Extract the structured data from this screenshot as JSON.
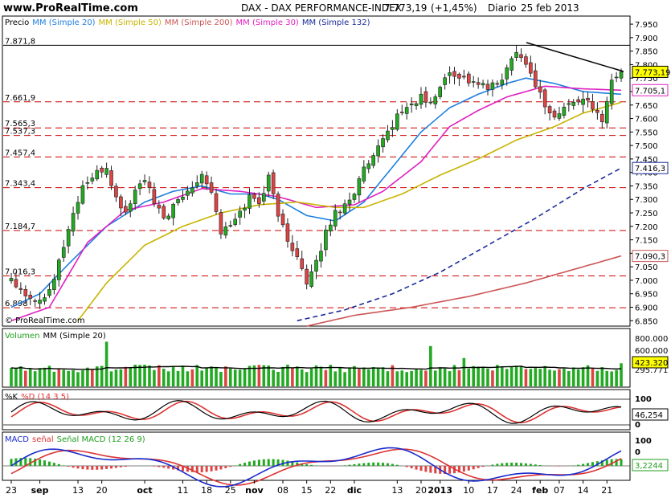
{
  "header": {
    "site": "www.ProRealTime.com",
    "title": "DAX - DAX PERFORMANCE-INDEX",
    "last_value": "7.773,19",
    "change": "(+1,45%)",
    "period": "Diario",
    "date": "25 feb 2013"
  },
  "watermark": "© ProRealTime.com",
  "price_panel": {
    "legend": [
      {
        "text": "Precio",
        "color": "#000000"
      },
      {
        "text": "MM (Simple 20)",
        "color": "#1e7fe0"
      },
      {
        "text": "MM (Simple 50)",
        "color": "#c8b400"
      },
      {
        "text": "MM (Simple 200)",
        "color": "#cc5555"
      },
      {
        "text": "MM (Simple 30)",
        "color": "#e020c0"
      },
      {
        "text": "MM (Simple 132)",
        "color": "#1a2a9a"
      }
    ],
    "y_ticks": [
      "7.950",
      "7.900",
      "7.850",
      "7.800",
      "7.750",
      "7.700",
      "7.650",
      "7.600",
      "7.550",
      "7.500",
      "7.450",
      "7.400",
      "7.350",
      "7.300",
      "7.250",
      "7.200",
      "7.150",
      "7.100",
      "7.050",
      "7.000",
      "6.950",
      "6.900",
      "6.850"
    ],
    "levels": [
      {
        "label": "7.871,8",
        "value": 7871.8,
        "style": "solid"
      },
      {
        "label": "7.661,9",
        "value": 7661.9,
        "style": "dashed"
      },
      {
        "label": "7.565,3",
        "value": 7565.3,
        "style": "dashed"
      },
      {
        "label": "7.537,3",
        "value": 7537.3,
        "style": "dashed"
      },
      {
        "label": "7.457,4",
        "value": 7457.4,
        "style": "dashed"
      },
      {
        "label": "7.343,4",
        "value": 7343.4,
        "style": "dashed"
      },
      {
        "label": "7.184,7",
        "value": 7184.7,
        "style": "dashed"
      },
      {
        "label": "7.016,3",
        "value": 7016.3,
        "style": "dashed"
      },
      {
        "label": "6.898",
        "value": 6898,
        "style": "dashed"
      }
    ],
    "value_tags": [
      {
        "label": "7.773,19",
        "value": 7773.19,
        "bg": "#ffff00",
        "border": "#000000"
      },
      {
        "label": "7.705,1",
        "value": 7705.1,
        "bg": "#ffffff",
        "border": "#e020c0"
      },
      {
        "label": "7.416,3",
        "value": 7416.3,
        "bg": "#ffffff",
        "border": "#1a2a9a"
      },
      {
        "label": "7.090,3",
        "value": 7090.3,
        "bg": "#ffffff",
        "border": "#cc5555"
      }
    ]
  },
  "volume_panel": {
    "legend": [
      {
        "text": "Volumen",
        "color": "#1e9e1e"
      },
      {
        "text": "MM (Simple 20)",
        "color": "#000000"
      }
    ],
    "y_ticks": [
      "800.000",
      "600.000",
      "295.771"
    ],
    "tag": {
      "label": "423.320",
      "bg": "#ffff00"
    }
  },
  "stoch_panel": {
    "legend": [
      {
        "text": "%K",
        "color": "#000000"
      },
      {
        "text": "%D (14 3 5)",
        "color": "#dd3333"
      }
    ],
    "y_ticks": [
      "100",
      "0"
    ],
    "tag": {
      "label": "46,254"
    }
  },
  "macd_panel": {
    "legend": [
      {
        "text": "MACD",
        "color": "#1a2acc"
      },
      {
        "text": "señal",
        "color": "#dd3333"
      },
      {
        "text": "Señal MACD (12 26 9)",
        "color": "#1e9e1e"
      }
    ],
    "y_ticks": [
      "100",
      "0"
    ],
    "tag": {
      "label": "3,2244"
    }
  },
  "x_axis": {
    "labels": [
      {
        "text": "23",
        "idx": 0
      },
      {
        "text": "sep",
        "idx": 6,
        "bold": true
      },
      {
        "text": "13",
        "idx": 14
      },
      {
        "text": "20",
        "idx": 19
      },
      {
        "text": "oct",
        "idx": 28,
        "bold": true
      },
      {
        "text": "11",
        "idx": 36
      },
      {
        "text": "18",
        "idx": 41
      },
      {
        "text": "25",
        "idx": 46
      },
      {
        "text": "nov",
        "idx": 51,
        "bold": true
      },
      {
        "text": "08",
        "idx": 57
      },
      {
        "text": "15",
        "idx": 62
      },
      {
        "text": "22",
        "idx": 67
      },
      {
        "text": "dic",
        "idx": 72,
        "bold": true
      },
      {
        "text": "13",
        "idx": 81
      },
      {
        "text": "20",
        "idx": 86
      },
      {
        "text": "2013",
        "idx": 90,
        "bold": true
      },
      {
        "text": "10",
        "idx": 96
      },
      {
        "text": "17",
        "idx": 101
      },
      {
        "text": "24",
        "idx": 106
      },
      {
        "text": "feb",
        "idx": 111,
        "bold": true
      },
      {
        "text": "07",
        "idx": 115
      },
      {
        "text": "14",
        "idx": 120
      },
      {
        "text": "21",
        "idx": 125
      }
    ]
  },
  "chart_data": {
    "type": "candlestick",
    "title": "DAX - DAX PERFORMANCE-INDEX",
    "ylim": [
      6830,
      7980
    ],
    "close_anchors": [
      [
        0,
        7010
      ],
      [
        3,
        6950
      ],
      [
        6,
        6920
      ],
      [
        9,
        7010
      ],
      [
        12,
        7190
      ],
      [
        15,
        7350
      ],
      [
        17,
        7380
      ],
      [
        20,
        7420
      ],
      [
        22,
        7300
      ],
      [
        24,
        7250
      ],
      [
        26,
        7330
      ],
      [
        28,
        7380
      ],
      [
        30,
        7280
      ],
      [
        32,
        7230
      ],
      [
        34,
        7270
      ],
      [
        36,
        7310
      ],
      [
        38,
        7350
      ],
      [
        40,
        7400
      ],
      [
        42,
        7330
      ],
      [
        44,
        7180
      ],
      [
        46,
        7200
      ],
      [
        48,
        7250
      ],
      [
        50,
        7310
      ],
      [
        52,
        7290
      ],
      [
        54,
        7380
      ],
      [
        56,
        7250
      ],
      [
        58,
        7140
      ],
      [
        60,
        7100
      ],
      [
        62,
        6980
      ],
      [
        64,
        7060
      ],
      [
        66,
        7180
      ],
      [
        68,
        7250
      ],
      [
        70,
        7280
      ],
      [
        72,
        7330
      ],
      [
        74,
        7410
      ],
      [
        76,
        7450
      ],
      [
        78,
        7520
      ],
      [
        80,
        7580
      ],
      [
        82,
        7630
      ],
      [
        84,
        7650
      ],
      [
        86,
        7680
      ],
      [
        88,
        7650
      ],
      [
        90,
        7720
      ],
      [
        92,
        7770
      ],
      [
        94,
        7760
      ],
      [
        96,
        7740
      ],
      [
        98,
        7730
      ],
      [
        100,
        7710
      ],
      [
        102,
        7730
      ],
      [
        104,
        7780
      ],
      [
        106,
        7860
      ],
      [
        108,
        7800
      ],
      [
        110,
        7730
      ],
      [
        112,
        7650
      ],
      [
        114,
        7600
      ],
      [
        116,
        7640
      ],
      [
        118,
        7660
      ],
      [
        120,
        7680
      ],
      [
        122,
        7630
      ],
      [
        124,
        7600
      ],
      [
        126,
        7740
      ],
      [
        128,
        7773.19
      ]
    ],
    "series": [
      {
        "name": "MM (Simple 20)",
        "color": "#1e7fe0",
        "values": [
          [
            0,
            6900
          ],
          [
            6,
            6950
          ],
          [
            12,
            7060
          ],
          [
            20,
            7200
          ],
          [
            28,
            7290
          ],
          [
            34,
            7330
          ],
          [
            40,
            7350
          ],
          [
            46,
            7320
          ],
          [
            52,
            7320
          ],
          [
            56,
            7300
          ],
          [
            62,
            7240
          ],
          [
            68,
            7220
          ],
          [
            74,
            7290
          ],
          [
            80,
            7420
          ],
          [
            86,
            7550
          ],
          [
            92,
            7640
          ],
          [
            98,
            7690
          ],
          [
            104,
            7730
          ],
          [
            108,
            7750
          ],
          [
            114,
            7730
          ],
          [
            120,
            7700
          ],
          [
            128,
            7690
          ]
        ]
      },
      {
        "name": "MM (Simple 30)",
        "color": "#e020c0",
        "values": [
          [
            0,
            6850
          ],
          [
            8,
            6900
          ],
          [
            16,
            7140
          ],
          [
            24,
            7260
          ],
          [
            32,
            7290
          ],
          [
            40,
            7340
          ],
          [
            48,
            7330
          ],
          [
            56,
            7310
          ],
          [
            64,
            7270
          ],
          [
            72,
            7280
          ],
          [
            78,
            7330
          ],
          [
            86,
            7440
          ],
          [
            92,
            7570
          ],
          [
            98,
            7630
          ],
          [
            104,
            7680
          ],
          [
            112,
            7720
          ],
          [
            120,
            7710
          ],
          [
            128,
            7705.1
          ]
        ]
      },
      {
        "name": "MM (Simple 50)",
        "color": "#c8b400",
        "values": [
          [
            14,
            6850
          ],
          [
            20,
            6990
          ],
          [
            28,
            7130
          ],
          [
            36,
            7200
          ],
          [
            44,
            7250
          ],
          [
            52,
            7280
          ],
          [
            60,
            7290
          ],
          [
            68,
            7270
          ],
          [
            74,
            7270
          ],
          [
            82,
            7320
          ],
          [
            90,
            7390
          ],
          [
            98,
            7450
          ],
          [
            106,
            7520
          ],
          [
            114,
            7570
          ],
          [
            120,
            7620
          ],
          [
            128,
            7660
          ]
        ]
      },
      {
        "name": "MM (Simple 132)",
        "color": "#1a2a9a",
        "values": [
          [
            60,
            6850
          ],
          [
            70,
            6890
          ],
          [
            80,
            6950
          ],
          [
            90,
            7030
          ],
          [
            100,
            7130
          ],
          [
            110,
            7230
          ],
          [
            120,
            7340
          ],
          [
            128,
            7416.3
          ]
        ]
      },
      {
        "name": "MM (Simple 200)",
        "color": "#cc5555",
        "values": [
          [
            62,
            6830
          ],
          [
            72,
            6870
          ],
          [
            84,
            6900
          ],
          [
            96,
            6940
          ],
          [
            108,
            6990
          ],
          [
            118,
            7040
          ],
          [
            128,
            7090.3
          ]
        ]
      }
    ]
  }
}
